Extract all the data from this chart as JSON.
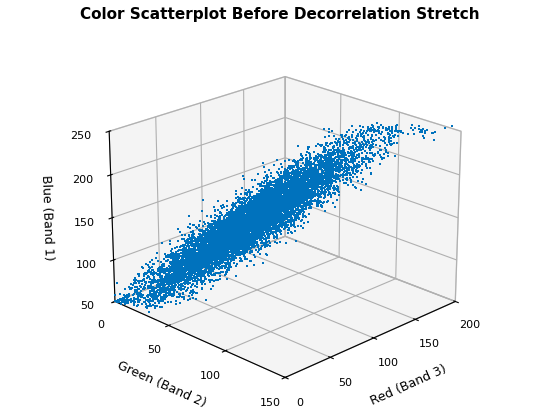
{
  "title": "Color Scatterplot Before Decorrelation Stretch",
  "xlabel": "Red (Band 3)",
  "ylabel": "Green (Band 2)",
  "zlabel": "Blue (Band 1)",
  "xlim": [
    0,
    200
  ],
  "ylim": [
    0,
    150
  ],
  "zlim": [
    50,
    250
  ],
  "xticks": [
    0,
    50,
    100,
    150,
    200
  ],
  "yticks": [
    0,
    50,
    100,
    150
  ],
  "zticks": [
    50,
    100,
    150,
    200,
    250
  ],
  "marker_color": "#0072BD",
  "marker_size": 2.0,
  "n_points": 10000,
  "seed": 42,
  "mean_red": 75,
  "mean_green": 65,
  "mean_blue": 150,
  "std_red": 28,
  "std_green": 25,
  "std_blue": 45,
  "corr_rg": 0.95,
  "corr_rb": 0.92,
  "corr_gb": 0.93,
  "view_elev": 22,
  "view_azim": -135,
  "title_fontsize": 11,
  "label_fontsize": 9
}
